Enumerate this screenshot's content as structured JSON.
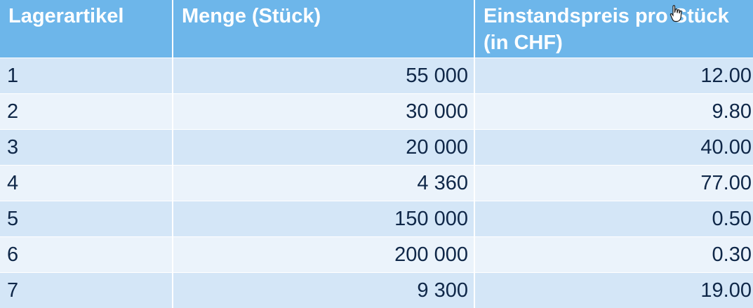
{
  "table": {
    "headers": [
      "Lagerartikel",
      "Menge (Stück)",
      "Einstandspreis pro Stück (in CHF)"
    ],
    "rows": [
      [
        "1",
        "55 000",
        "12.00"
      ],
      [
        "2",
        "30 000",
        "9.80"
      ],
      [
        "3",
        "20 000",
        "40.00"
      ],
      [
        "4",
        "4 360",
        "77.00"
      ],
      [
        "5",
        "150 000",
        "0.50"
      ],
      [
        "6",
        "200 000",
        "0.30"
      ],
      [
        "7",
        "9 300",
        "19.00"
      ]
    ]
  },
  "colors": {
    "header_bg": "#6db6ea",
    "row_odd_bg": "#d4e6f7",
    "row_even_bg": "#ebf3fb",
    "text": "#0f2748"
  },
  "icons": {
    "cursor": "hand-cursor-icon"
  }
}
